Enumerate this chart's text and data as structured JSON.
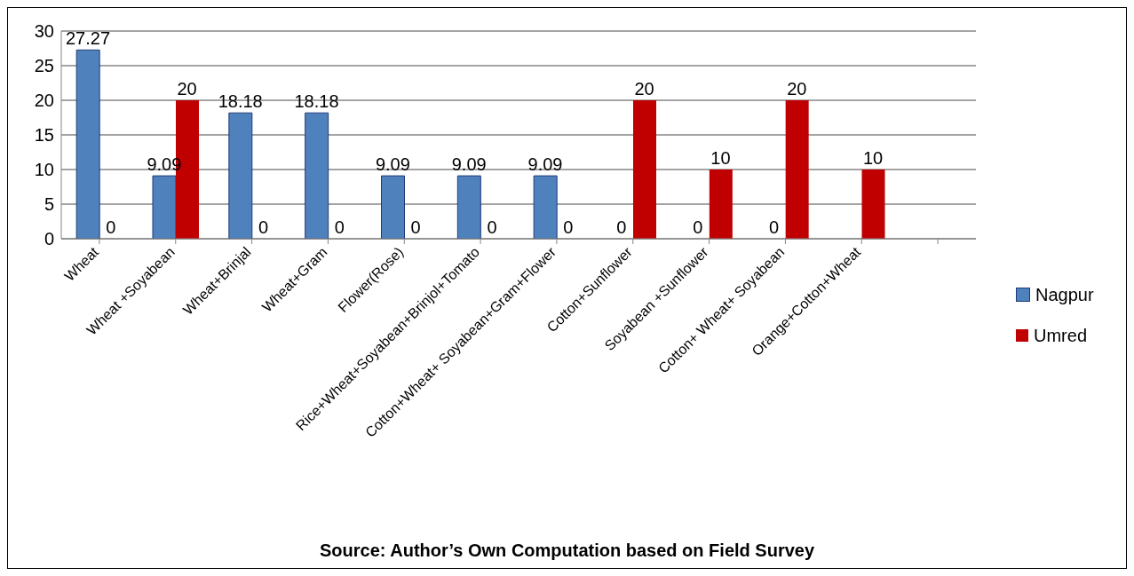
{
  "chart_data": {
    "type": "bar",
    "categories": [
      "Wheat",
      "Wheat +Soyabean",
      "Wheat+Brinjal",
      "Wheat+Gram",
      "Flower(Rose)",
      "Rice+Wheat+Soyabean+Brinjol+Tomato",
      "Cotton+Wheat+ Soyabean+Gram+Flower",
      "Cotton+Sunflower",
      "Soyabean +Sunflower",
      "Cotton+ Wheat+ Soyabean",
      "Orange+Cotton+Wheat",
      null
    ],
    "series": [
      {
        "name": "Nagpur",
        "color": "#4f81bd",
        "values": [
          27.27,
          9.09,
          18.18,
          18.18,
          9.09,
          9.09,
          9.09,
          0,
          0,
          0,
          null,
          null
        ]
      },
      {
        "name": "Umred",
        "color": "#c00000",
        "values": [
          0,
          20,
          0,
          0,
          0,
          0,
          0,
          20,
          10,
          20,
          10,
          null
        ]
      }
    ],
    "ylim": [
      0,
      30
    ],
    "yticks": [
      0,
      5,
      10,
      15,
      20,
      25,
      30
    ],
    "grid": "y",
    "legend": "right",
    "data_labels": true,
    "annotations": [
      "Source: Author’s Own Computation based on Field Survey"
    ]
  }
}
